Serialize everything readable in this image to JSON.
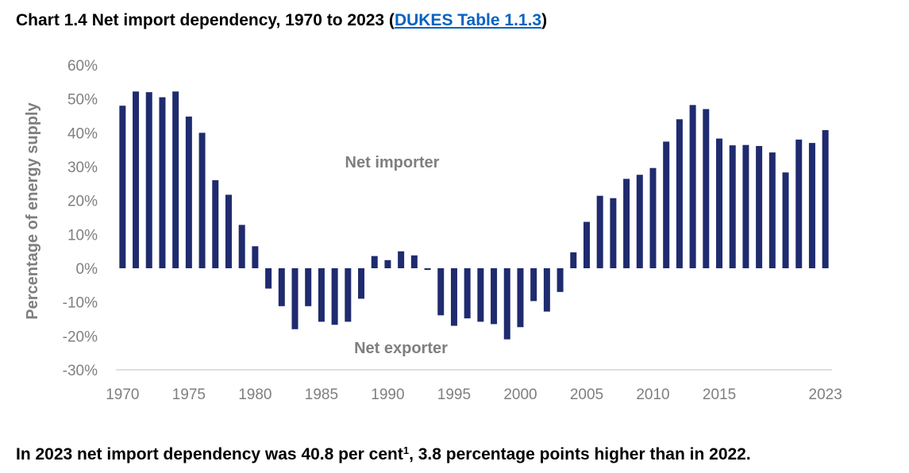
{
  "header": {
    "title_prefix": "Chart 1.4 Net import dependency, 1970 to 2023 (",
    "title_link": "DUKES Table 1.1.3",
    "title_suffix": ")"
  },
  "footer": {
    "text_before_sup": "In 2023 net import dependency was 40.8 per cent",
    "sup": "1",
    "text_after_sup": ", 3.8 percentage points higher than in 2022."
  },
  "chart_data": {
    "type": "bar",
    "ylabel": "Percentage of energy supply",
    "ylim": [
      -30,
      60
    ],
    "yticks": [
      "60%",
      "50%",
      "40%",
      "30%",
      "20%",
      "10%",
      "0%",
      "-10%",
      "-20%",
      "-30%"
    ],
    "ytick_values": [
      60,
      50,
      40,
      30,
      20,
      10,
      0,
      -10,
      -20,
      -30
    ],
    "xtick_labels": [
      "1970",
      "1975",
      "1980",
      "1985",
      "1990",
      "1995",
      "2000",
      "2005",
      "2010",
      "2015",
      "2023"
    ],
    "annotations": [
      "Net importer",
      "Net exporter"
    ],
    "bar_color": "#1f2b6e",
    "grid": false,
    "categories": [
      1970,
      1971,
      1972,
      1973,
      1974,
      1975,
      1976,
      1977,
      1978,
      1979,
      1980,
      1981,
      1982,
      1983,
      1984,
      1985,
      1986,
      1987,
      1988,
      1989,
      1990,
      1991,
      1992,
      1993,
      1994,
      1995,
      1996,
      1997,
      1998,
      1999,
      2000,
      2001,
      2002,
      2003,
      2004,
      2005,
      2006,
      2007,
      2008,
      2009,
      2010,
      2011,
      2012,
      2013,
      2014,
      2015,
      2016,
      2017,
      2018,
      2019,
      2020,
      2021,
      2022,
      2023
    ],
    "values": [
      48.0,
      52.2,
      52.0,
      50.5,
      52.2,
      44.8,
      40.0,
      26.0,
      21.7,
      12.8,
      6.5,
      -6.0,
      -11.2,
      -18.0,
      -11.2,
      -15.8,
      -16.7,
      -15.8,
      -9.0,
      3.6,
      2.4,
      5.0,
      3.8,
      -0.5,
      -13.9,
      -17.0,
      -14.8,
      -15.8,
      -16.5,
      -21.0,
      -17.4,
      -9.7,
      -12.8,
      -7.0,
      4.7,
      13.7,
      21.4,
      20.7,
      26.4,
      27.6,
      29.6,
      37.4,
      44.0,
      48.2,
      47.0,
      38.3,
      36.3,
      36.4,
      36.1,
      34.2,
      28.3,
      38.0,
      37.0,
      40.8
    ]
  }
}
